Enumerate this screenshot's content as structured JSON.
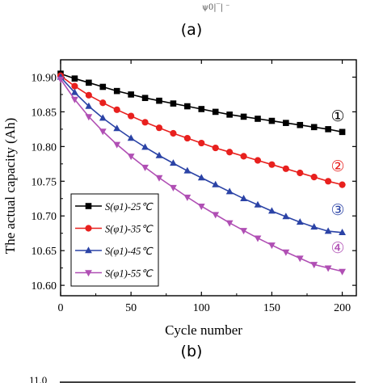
{
  "figure": {
    "caption_a": "(a)",
    "caption_b": "(b)",
    "bottom_tick_fragment": "11.0"
  },
  "chart_data": {
    "type": "line",
    "title": "",
    "xlabel": "Cycle number",
    "ylabel": "The actual capacity (Ah)",
    "xlim": [
      0,
      210
    ],
    "ylim": [
      10.585,
      10.925
    ],
    "x_ticks": [
      "0",
      "50",
      "100",
      "150",
      "200"
    ],
    "y_ticks": [
      "10.60",
      "10.65",
      "10.70",
      "10.75",
      "10.80",
      "10.85",
      "10.90"
    ],
    "grid": false,
    "legend_position": "bottom-left",
    "x": [
      0,
      10,
      20,
      30,
      40,
      50,
      60,
      70,
      80,
      90,
      100,
      110,
      120,
      130,
      140,
      150,
      160,
      170,
      180,
      190,
      200
    ],
    "series": [
      {
        "name": "S(φ1)-25℃",
        "color": "#000000",
        "marker": "square",
        "tag": "①",
        "values": [
          10.905,
          10.898,
          10.892,
          10.886,
          10.88,
          10.875,
          10.87,
          10.866,
          10.862,
          10.858,
          10.854,
          10.85,
          10.846,
          10.843,
          10.84,
          10.837,
          10.834,
          10.831,
          10.828,
          10.825,
          10.821
        ]
      },
      {
        "name": "S(φ1)-35℃",
        "color": "#e8201e",
        "marker": "circle",
        "tag": "②",
        "values": [
          10.902,
          10.887,
          10.874,
          10.863,
          10.853,
          10.844,
          10.835,
          10.827,
          10.819,
          10.812,
          10.805,
          10.798,
          10.792,
          10.786,
          10.78,
          10.774,
          10.768,
          10.762,
          10.756,
          10.75,
          10.745
        ]
      },
      {
        "name": "S(φ1)-45℃",
        "color": "#2b43a6",
        "marker": "triangle-up",
        "tag": "③",
        "values": [
          10.9,
          10.878,
          10.858,
          10.841,
          10.826,
          10.812,
          10.799,
          10.787,
          10.776,
          10.765,
          10.755,
          10.745,
          10.735,
          10.725,
          10.716,
          10.707,
          10.699,
          10.691,
          10.684,
          10.678,
          10.676
        ]
      },
      {
        "name": "S(φ1)-55℃",
        "color": "#b04fb4",
        "marker": "triangle-down",
        "tag": "④",
        "values": [
          10.897,
          10.868,
          10.843,
          10.822,
          10.803,
          10.786,
          10.77,
          10.755,
          10.741,
          10.727,
          10.714,
          10.702,
          10.69,
          10.679,
          10.668,
          10.658,
          10.648,
          10.639,
          10.63,
          10.625,
          10.62
        ]
      }
    ]
  }
}
